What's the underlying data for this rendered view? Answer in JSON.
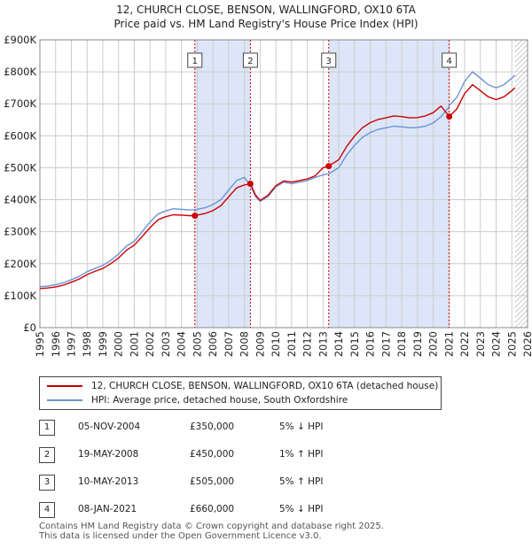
{
  "title_line1": "12, CHURCH CLOSE, BENSON, WALLINGFORD, OX10 6TA",
  "title_line2": "Price paid vs. HM Land Registry's House Price Index (HPI)",
  "colors": {
    "property": "#cc0000",
    "hpi": "#6b93d6",
    "band": "#dde6f8",
    "hatch": "#999999",
    "grid": "#cccccc"
  },
  "legend": {
    "property_label": "12, CHURCH CLOSE, BENSON, WALLINGFORD, OX10 6TA (detached house)",
    "hpi_label": "HPI: Average price, detached house, South Oxfordshire"
  },
  "sales": [
    {
      "num": "1",
      "date": "05-NOV-2004",
      "price": "£350,000",
      "hpi": "5% ↓ HPI"
    },
    {
      "num": "2",
      "date": "19-MAY-2008",
      "price": "£450,000",
      "hpi": "1% ↑ HPI"
    },
    {
      "num": "3",
      "date": "10-MAY-2013",
      "price": "£505,000",
      "hpi": "5% ↑ HPI"
    },
    {
      "num": "4",
      "date": "08-JAN-2021",
      "price": "£660,000",
      "hpi": "5% ↓ HPI"
    }
  ],
  "footer_line1": "Contains HM Land Registry data © Crown copyright and database right 2025.",
  "footer_line2": "This data is licensed under the Open Government Licence v3.0.",
  "chart_data": {
    "type": "line",
    "ylabel": "",
    "xlabel": "",
    "xlim": [
      1995,
      2026
    ],
    "ylim": [
      0,
      900000
    ],
    "x_ticks": [
      "1995",
      "1996",
      "1997",
      "1998",
      "1999",
      "2000",
      "2001",
      "2002",
      "2003",
      "2004",
      "2005",
      "2006",
      "2007",
      "2008",
      "2009",
      "2010",
      "2011",
      "2012",
      "2013",
      "2014",
      "2015",
      "2016",
      "2017",
      "2018",
      "2019",
      "2020",
      "2021",
      "2022",
      "2023",
      "2024",
      "2025",
      "2026"
    ],
    "y_ticks": [
      {
        "value": 0,
        "label": "£0"
      },
      {
        "value": 100000,
        "label": "£100K"
      },
      {
        "value": 200000,
        "label": "£200K"
      },
      {
        "value": 300000,
        "label": "£300K"
      },
      {
        "value": 400000,
        "label": "£400K"
      },
      {
        "value": 500000,
        "label": "£500K"
      },
      {
        "value": 600000,
        "label": "£600K"
      },
      {
        "value": 700000,
        "label": "£700K"
      },
      {
        "value": 800000,
        "label": "£800K"
      },
      {
        "value": 900000,
        "label": "£900K"
      }
    ],
    "grid": true,
    "shaded_periods": [
      [
        2004.85,
        2008.38
      ],
      [
        2013.36,
        2021.02
      ]
    ],
    "future_hatch_from": 2025.2,
    "sales": [
      {
        "label": "1",
        "x": 2004.85,
        "y": 350000
      },
      {
        "label": "2",
        "x": 2008.38,
        "y": 450000
      },
      {
        "label": "3",
        "x": 2013.36,
        "y": 505000
      },
      {
        "label": "4",
        "x": 2021.02,
        "y": 660000
      }
    ],
    "series": [
      {
        "name": "HPI: Average price, detached house, South Oxfordshire",
        "color": "#6b93d6",
        "x": [
          1995,
          1995.5,
          1996,
          1996.5,
          1997,
          1997.5,
          1998,
          1998.5,
          1999,
          1999.5,
          2000,
          2000.5,
          2001,
          2001.5,
          2002,
          2002.5,
          2003,
          2003.5,
          2004,
          2004.5,
          2004.85,
          2005,
          2005.5,
          2006,
          2006.5,
          2007,
          2007.5,
          2008,
          2008.38,
          2008.7,
          2009,
          2009.5,
          2010,
          2010.5,
          2011,
          2011.5,
          2012,
          2012.5,
          2013,
          2013.36,
          2013.5,
          2014,
          2014.5,
          2015,
          2015.5,
          2016,
          2016.5,
          2017,
          2017.5,
          2018,
          2018.5,
          2019,
          2019.5,
          2020,
          2020.5,
          2021,
          2021.02,
          2021.5,
          2022,
          2022.5,
          2023,
          2023.5,
          2024,
          2024.5,
          2025,
          2025.2
        ],
        "y": [
          128000,
          130000,
          134000,
          140000,
          150000,
          160000,
          175000,
          185000,
          195000,
          210000,
          230000,
          255000,
          270000,
          300000,
          330000,
          355000,
          365000,
          372000,
          370000,
          368000,
          369000,
          370000,
          375000,
          385000,
          400000,
          430000,
          460000,
          470000,
          445000,
          410000,
          395000,
          410000,
          440000,
          455000,
          450000,
          455000,
          460000,
          470000,
          478000,
          481000,
          485000,
          500000,
          540000,
          570000,
          595000,
          610000,
          620000,
          625000,
          630000,
          628000,
          625000,
          626000,
          630000,
          640000,
          660000,
          690000,
          695000,
          720000,
          770000,
          800000,
          780000,
          760000,
          750000,
          760000,
          780000,
          790000
        ]
      },
      {
        "name": "12, CHURCH CLOSE, BENSON, WALLINGFORD, OX10 6TA (detached house)",
        "color": "#cc0000",
        "x": [
          1995,
          1995.5,
          1996,
          1996.5,
          1997,
          1997.5,
          1998,
          1998.5,
          1999,
          1999.5,
          2000,
          2000.5,
          2001,
          2001.5,
          2002,
          2002.5,
          2003,
          2003.5,
          2004,
          2004.5,
          2004.85,
          2005,
          2005.5,
          2006,
          2006.5,
          2007,
          2007.5,
          2008,
          2008.38,
          2008.7,
          2009,
          2009.5,
          2010,
          2010.5,
          2011,
          2011.5,
          2012,
          2012.5,
          2013,
          2013.36,
          2013.5,
          2014,
          2014.5,
          2015,
          2015.5,
          2016,
          2016.5,
          2017,
          2017.5,
          2018,
          2018.5,
          2019,
          2019.5,
          2020,
          2020.5,
          2021,
          2021.02,
          2021.5,
          2022,
          2022.5,
          2023,
          2023.5,
          2024,
          2024.5,
          2025,
          2025.2
        ],
        "y": [
          122000,
          124000,
          127000,
          133000,
          142000,
          152000,
          166000,
          176000,
          185000,
          200000,
          218000,
          242000,
          258000,
          285000,
          313000,
          337000,
          347000,
          353000,
          352000,
          350000,
          350000,
          352000,
          357000,
          366000,
          381000,
          409000,
          437000,
          446000,
          450000,
          415000,
          398000,
          414000,
          444000,
          459000,
          455000,
          460000,
          465000,
          475000,
          500000,
          505000,
          510000,
          525000,
          567000,
          599000,
          625000,
          641000,
          651000,
          656000,
          662000,
          660000,
          656000,
          657000,
          662000,
          672000,
          693000,
          662000,
          660000,
          684000,
          732000,
          760000,
          741000,
          722000,
          713000,
          722000,
          741000,
          750000
        ]
      }
    ]
  }
}
